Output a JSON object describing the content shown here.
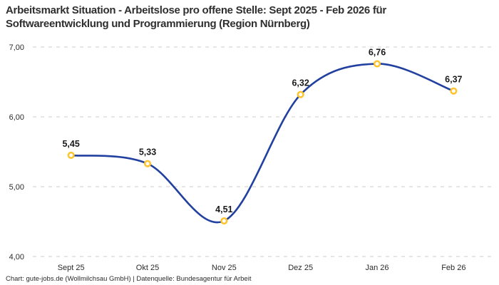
{
  "title": {
    "line1": "Arbeitsmarkt Situation - Arbeitslose pro offene Stelle: Sept 2025 - Feb 2026 für",
    "line2": "Softwareentwicklung und Programmierung (Region Nürnberg)"
  },
  "footer": "Chart: gute-jobs.de (Wollmilchsau GmbH) | Datenquelle: Bundesagentur für Arbeit",
  "chart_data": {
    "type": "line",
    "title": "Arbeitsmarkt Situation - Arbeitslose pro offene Stelle: Sept 2025 - Feb 2026 für Softwareentwicklung und Programmierung (Region Nürnberg)",
    "categories": [
      "Sept 25",
      "Okt 25",
      "Nov 25",
      "Dez 25",
      "Jan 26",
      "Feb 26"
    ],
    "values": [
      5.45,
      5.33,
      4.51,
      6.32,
      6.76,
      6.37
    ],
    "value_labels": [
      "5,45",
      "5,33",
      "4,51",
      "6,32",
      "6,76",
      "6,37"
    ],
    "xlabel": "",
    "ylabel": "",
    "ylim": [
      4,
      7
    ],
    "yticks": [
      {
        "value": 4,
        "label": "4,00"
      },
      {
        "value": 5,
        "label": "5,00"
      },
      {
        "value": 6,
        "label": "6,00"
      },
      {
        "value": 7,
        "label": "7,00"
      }
    ],
    "grid": "horizontal-dashed",
    "legend_position": "none",
    "line_style": "smooth",
    "colors": {
      "line": "#21409f",
      "marker_stroke": "#ffc32b",
      "marker_fill": "#ffffff",
      "grid": "#cccccc",
      "data_label": "#1a1a1a",
      "tick_label": "#2b2b2b",
      "title": "#2f2f2f"
    }
  }
}
